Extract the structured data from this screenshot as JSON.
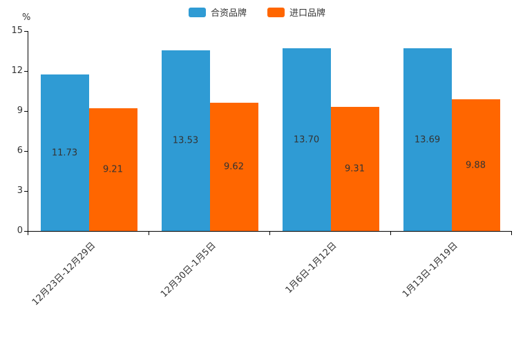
{
  "chart_data": {
    "type": "bar",
    "title": "",
    "categories": [
      "12月23日-12月29日",
      "12月30日-1月5日",
      "1月6日-1月12日",
      "1月13日-1月19日"
    ],
    "series": [
      {
        "name": "合资品牌",
        "color": "#2f9bd4",
        "values": [
          11.73,
          13.53,
          13.7,
          13.69
        ],
        "labels": [
          "11.73",
          "13.53",
          "13.70",
          "13.69"
        ]
      },
      {
        "name": "进口品牌",
        "color": "#ff6600",
        "values": [
          9.21,
          9.62,
          9.31,
          9.88
        ],
        "labels": [
          "9.21",
          "9.62",
          "9.31",
          "9.88"
        ]
      }
    ],
    "xlabel": "",
    "ylabel": "%",
    "ylim": [
      0,
      15
    ],
    "yticks": [
      0,
      3,
      6,
      9,
      12,
      15
    ],
    "legend_position": "top",
    "grid": false,
    "axis_color": "#000000",
    "label_color": "#333333"
  }
}
